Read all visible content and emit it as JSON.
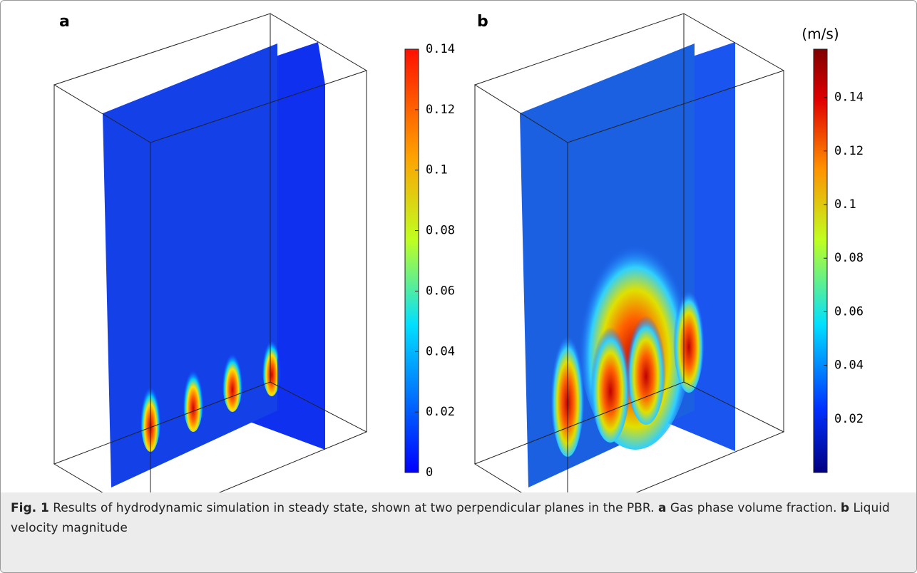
{
  "panels": [
    {
      "label": "a",
      "colorbar": {
        "lim": [
          0,
          0.14
        ],
        "ticks": [
          0,
          0.02,
          0.04,
          0.06,
          0.08,
          0.1,
          0.12,
          0.14
        ]
      }
    },
    {
      "label": "b",
      "colorbar": {
        "unit": "(m/s)",
        "lim": [
          0,
          0.158
        ],
        "ticks": [
          0.02,
          0.04,
          0.06,
          0.08,
          0.1,
          0.12,
          0.14
        ]
      }
    }
  ],
  "caption": {
    "fig": "Fig. 1",
    "text": "Results of hydrodynamic simulation in steady state, shown at two perpendicular planes in the PBR.",
    "a_label": "a",
    "a_text": "Gas phase volume fraction.",
    "b_label": "b",
    "b_text": "Liquid velocity magnitude"
  }
}
